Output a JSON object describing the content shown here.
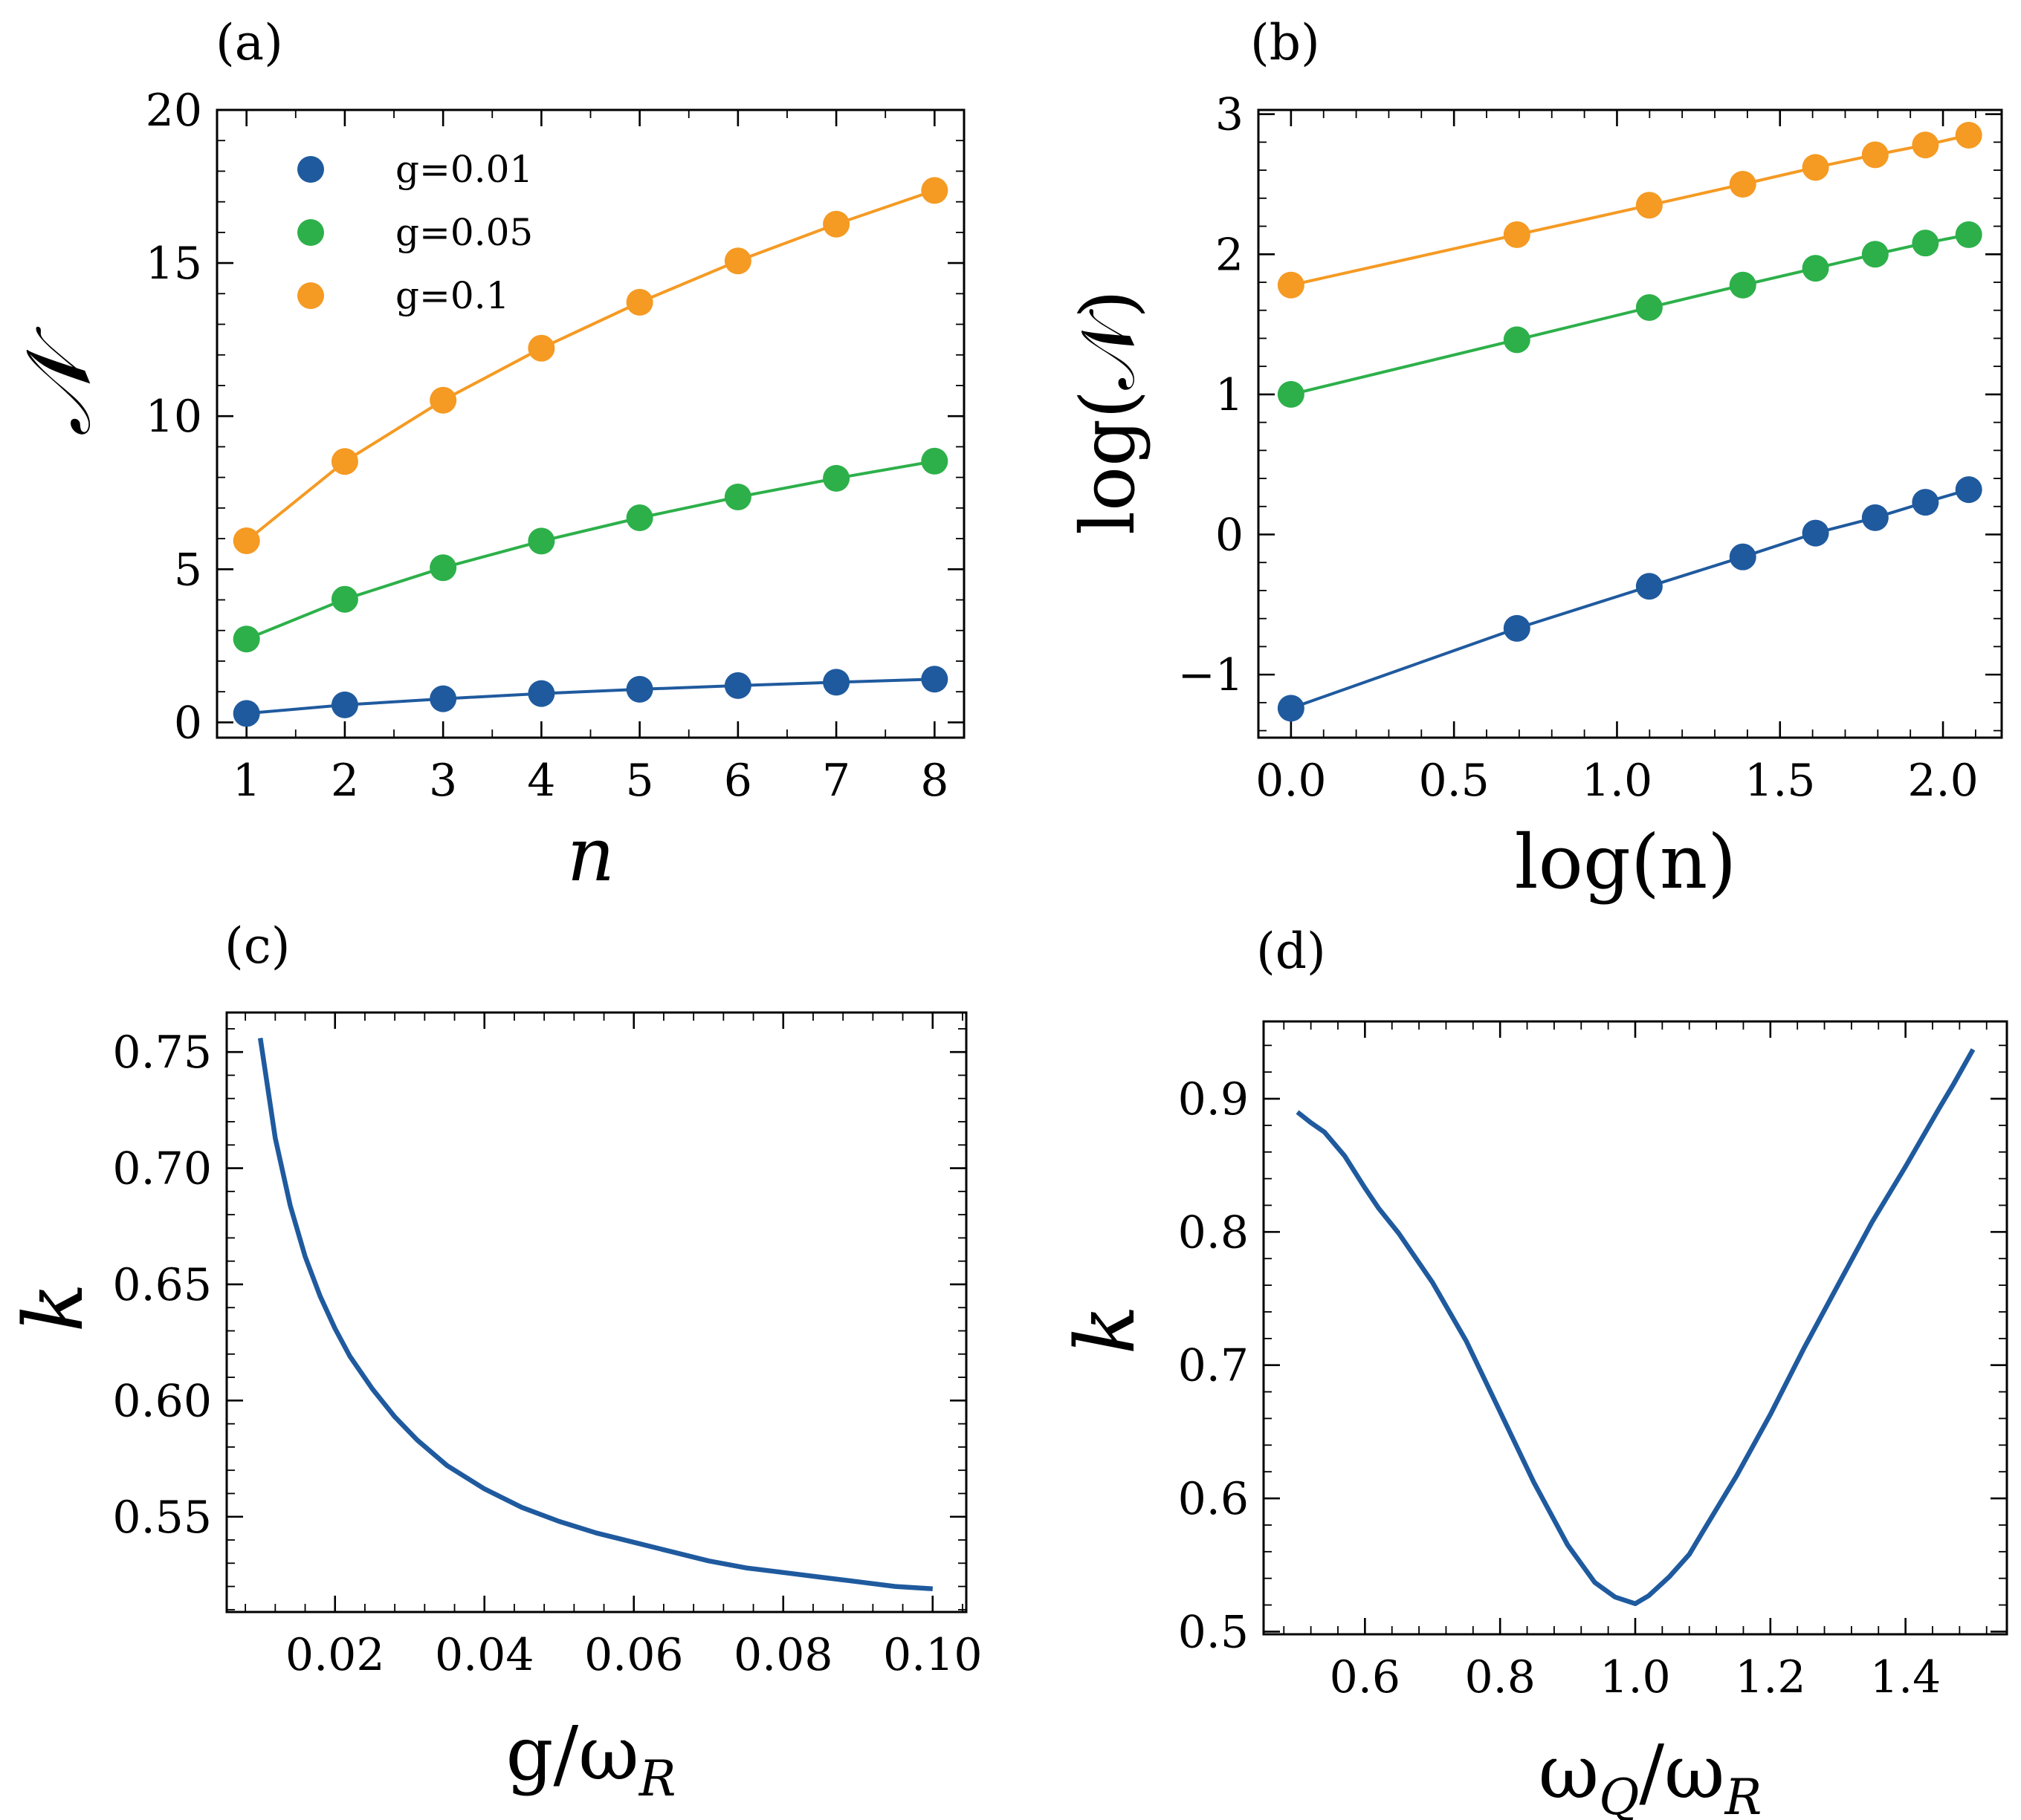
{
  "chart_data": [
    {
      "id": "a",
      "panel_label": "(a)",
      "type": "line",
      "xlabel": "n",
      "ylabel": "𝒩",
      "xlim": [
        0.7,
        8.3
      ],
      "ylim": [
        -0.5,
        20
      ],
      "xticks": [
        1,
        2,
        3,
        4,
        5,
        6,
        7,
        8
      ],
      "yticks": [
        0,
        5,
        10,
        15,
        20
      ],
      "xtick_labels": [
        "1",
        "2",
        "3",
        "4",
        "5",
        "6",
        "7",
        "8"
      ],
      "ytick_labels": [
        "0",
        "5",
        "10",
        "15",
        "20"
      ],
      "legend": "upper-left",
      "series": [
        {
          "name": "g=0.01",
          "color": "#1f5a9e",
          "markers": true,
          "x": [
            1,
            2,
            3,
            4,
            5,
            6,
            7,
            8
          ],
          "y": [
            0.29,
            0.57,
            0.77,
            0.94,
            1.08,
            1.2,
            1.31,
            1.41
          ]
        },
        {
          "name": "g=0.05",
          "color": "#2db04a",
          "markers": true,
          "x": [
            1,
            2,
            3,
            4,
            5,
            6,
            7,
            8
          ],
          "y": [
            2.72,
            4.02,
            5.05,
            5.92,
            6.68,
            7.36,
            7.97,
            8.53
          ]
        },
        {
          "name": "g=0.1",
          "color": "#f59a23",
          "markers": true,
          "x": [
            1,
            2,
            3,
            4,
            5,
            6,
            7,
            8
          ],
          "y": [
            5.93,
            8.52,
            10.52,
            12.22,
            13.72,
            15.07,
            16.27,
            17.37
          ]
        }
      ]
    },
    {
      "id": "b",
      "panel_label": "(b)",
      "type": "line",
      "xlabel": "log(n)",
      "ylabel": "log(𝒩)",
      "xlim": [
        -0.1,
        2.18
      ],
      "ylim": [
        -1.45,
        3.03
      ],
      "xticks": [
        0.0,
        0.5,
        1.0,
        1.5,
        2.0
      ],
      "yticks": [
        -1,
        0,
        1,
        2,
        3
      ],
      "xtick_labels": [
        "0.0",
        "0.5",
        "1.0",
        "1.5",
        "2.0"
      ],
      "ytick_labels": [
        "−1",
        "0",
        "1",
        "2",
        "3"
      ],
      "series": [
        {
          "name": "g=0.01",
          "color": "#1f5a9e",
          "markers": true,
          "x": [
            0.0,
            0.693,
            1.099,
            1.386,
            1.609,
            1.792,
            1.946,
            2.079
          ],
          "y": [
            -1.24,
            -0.67,
            -0.37,
            -0.16,
            0.01,
            0.12,
            0.23,
            0.32
          ]
        },
        {
          "name": "g=0.05",
          "color": "#2db04a",
          "markers": true,
          "x": [
            0.0,
            0.693,
            1.099,
            1.386,
            1.609,
            1.792,
            1.946,
            2.079
          ],
          "y": [
            1.0,
            1.39,
            1.62,
            1.78,
            1.9,
            2.0,
            2.08,
            2.14
          ]
        },
        {
          "name": "g=0.1",
          "color": "#f59a23",
          "markers": true,
          "x": [
            0.0,
            0.693,
            1.099,
            1.386,
            1.609,
            1.792,
            1.946,
            2.079
          ],
          "y": [
            1.78,
            2.14,
            2.35,
            2.5,
            2.62,
            2.71,
            2.78,
            2.85
          ]
        }
      ]
    },
    {
      "id": "c",
      "panel_label": "(c)",
      "type": "line",
      "xlabel": "g/ω",
      "xlabel_sub": "R",
      "ylabel": "k",
      "xlim": [
        0.0055,
        0.1045
      ],
      "ylim": [
        0.509,
        0.767
      ],
      "xticks": [
        0.02,
        0.04,
        0.06,
        0.08,
        0.1
      ],
      "yticks": [
        0.55,
        0.6,
        0.65,
        0.7,
        0.75
      ],
      "xtick_labels": [
        "0.02",
        "0.04",
        "0.06",
        "0.08",
        "0.10"
      ],
      "ytick_labels": [
        "0.55",
        "0.60",
        "0.65",
        "0.70",
        "0.75"
      ],
      "series": [
        {
          "name": "k",
          "color": "#1f5a9e",
          "markers": false,
          "x": [
            0.01,
            0.012,
            0.014,
            0.016,
            0.018,
            0.02,
            0.022,
            0.025,
            0.028,
            0.031,
            0.035,
            0.04,
            0.045,
            0.05,
            0.055,
            0.06,
            0.065,
            0.07,
            0.075,
            0.08,
            0.085,
            0.09,
            0.095,
            0.1
          ],
          "y": [
            0.756,
            0.713,
            0.684,
            0.662,
            0.645,
            0.631,
            0.619,
            0.605,
            0.593,
            0.583,
            0.572,
            0.562,
            0.554,
            0.548,
            0.543,
            0.539,
            0.535,
            0.531,
            0.528,
            0.526,
            0.524,
            0.522,
            0.52,
            0.519
          ]
        }
      ]
    },
    {
      "id": "d",
      "panel_label": "(d)",
      "type": "line",
      "xlabel": "ω",
      "xlabel_sub1": "Q",
      "xlabel_mid": "/ω",
      "xlabel_sub2": "R",
      "ylabel": "k",
      "xlim": [
        0.45,
        1.55
      ],
      "ylim": [
        0.498,
        0.958
      ],
      "xticks": [
        0.6,
        0.8,
        1.0,
        1.2,
        1.4
      ],
      "yticks": [
        0.5,
        0.6,
        0.7,
        0.8,
        0.9
      ],
      "xtick_labels": [
        "0.6",
        "0.8",
        "1.0",
        "1.2",
        "1.4"
      ],
      "ytick_labels": [
        "0.5",
        "0.6",
        "0.7",
        "0.8",
        "0.9"
      ],
      "series": [
        {
          "name": "k",
          "color": "#1f5a9e",
          "markers": false,
          "x": [
            0.5,
            0.52,
            0.54,
            0.57,
            0.6,
            0.62,
            0.65,
            0.7,
            0.75,
            0.8,
            0.85,
            0.9,
            0.94,
            0.97,
            1.0,
            1.02,
            1.05,
            1.08,
            1.1,
            1.15,
            1.2,
            1.25,
            1.3,
            1.35,
            1.4,
            1.45,
            1.47,
            1.5
          ],
          "y": [
            0.89,
            0.882,
            0.875,
            0.857,
            0.833,
            0.818,
            0.799,
            0.762,
            0.718,
            0.665,
            0.612,
            0.565,
            0.537,
            0.526,
            0.521,
            0.527,
            0.541,
            0.558,
            0.575,
            0.617,
            0.663,
            0.713,
            0.76,
            0.807,
            0.849,
            0.893,
            0.91,
            0.937
          ]
        }
      ]
    }
  ]
}
